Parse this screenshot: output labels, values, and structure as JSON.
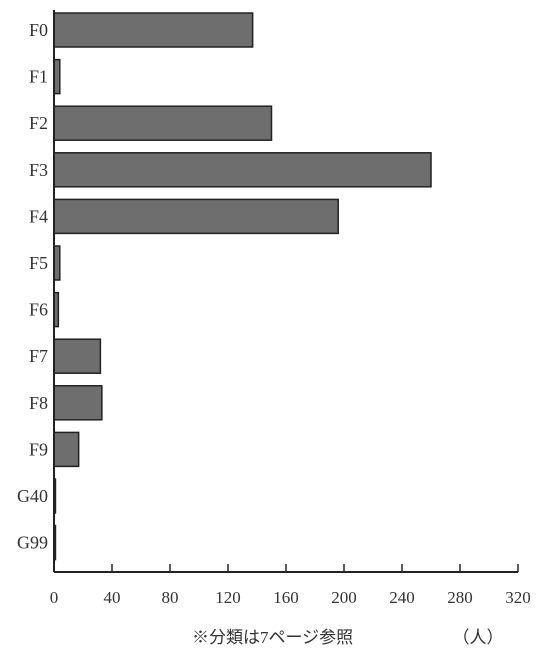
{
  "chart_data": {
    "type": "bar",
    "orientation": "horizontal",
    "categories": [
      "F0",
      "F1",
      "F2",
      "F3",
      "F4",
      "F5",
      "F6",
      "F7",
      "F8",
      "F9",
      "G40",
      "G99"
    ],
    "values": [
      137,
      4,
      150,
      260,
      196,
      4,
      3,
      32,
      33,
      17,
      1,
      1
    ],
    "title": "",
    "xlabel": "",
    "ylabel": "",
    "xlim": [
      0,
      320
    ],
    "x_ticks": [
      "0",
      "40",
      "80",
      "120",
      "160",
      "200",
      "240",
      "280",
      "320"
    ],
    "grid": false,
    "note": "※分類は7ページ参照",
    "unit_label": "（人）",
    "bar_color": "#6e6e6e"
  }
}
